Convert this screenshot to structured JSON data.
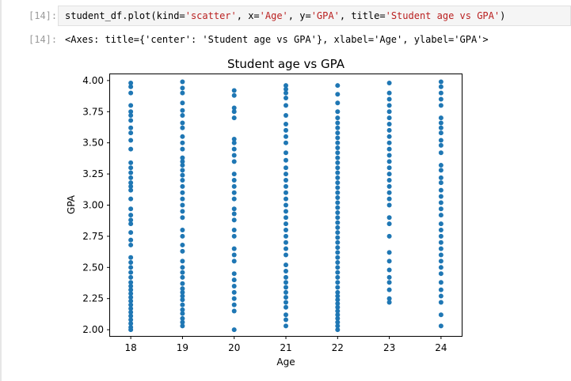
{
  "cell": {
    "input_prompt": "[14]:",
    "output_prompt": "[14]:",
    "code": {
      "prefix": "student_df.plot(kind=",
      "kind_val": "'scatter'",
      "mid1": ", x=",
      "x_val": "'Age'",
      "mid2": ", y=",
      "y_val": "'GPA'",
      "mid3": ", title=",
      "title_val": "'Student age vs GPA'",
      "suffix": ")"
    },
    "output_repr": "<Axes: title={'center': 'Student age vs GPA'}, xlabel='Age', ylabel='GPA'>"
  },
  "chart_data": {
    "type": "scatter",
    "title": "Student age vs GPA",
    "xlabel": "Age",
    "ylabel": "GPA",
    "xlim": [
      17.6,
      24.4
    ],
    "ylim": [
      1.95,
      4.05
    ],
    "x_ticks": [
      "18",
      "19",
      "20",
      "21",
      "22",
      "23",
      "24"
    ],
    "y_ticks": [
      "2.00",
      "2.25",
      "2.50",
      "2.75",
      "3.00",
      "3.25",
      "3.50",
      "3.75",
      "4.00"
    ],
    "grid": false,
    "color": "#1f77b4",
    "series": [
      {
        "x": 18,
        "y": [
          2.0,
          2.02,
          2.05,
          2.08,
          2.11,
          2.14,
          2.17,
          2.2,
          2.23,
          2.26,
          2.29,
          2.32,
          2.35,
          2.38,
          2.42,
          2.46,
          2.5,
          2.54,
          2.58,
          2.68,
          2.72,
          2.78,
          2.85,
          2.88,
          2.92,
          2.97,
          3.05,
          3.12,
          3.15,
          3.18,
          3.22,
          3.26,
          3.3,
          3.34,
          3.45,
          3.52,
          3.58,
          3.62,
          3.68,
          3.72,
          3.75,
          3.8,
          3.9,
          3.95,
          3.98
        ]
      },
      {
        "x": 19,
        "y": [
          2.03,
          2.06,
          2.09,
          2.13,
          2.16,
          2.2,
          2.24,
          2.27,
          2.3,
          2.33,
          2.37,
          2.42,
          2.46,
          2.5,
          2.55,
          2.63,
          2.68,
          2.75,
          2.8,
          2.9,
          2.95,
          3.0,
          3.05,
          3.1,
          3.15,
          3.2,
          3.24,
          3.28,
          3.32,
          3.35,
          3.38,
          3.45,
          3.5,
          3.55,
          3.62,
          3.66,
          3.72,
          3.76,
          3.82,
          3.9,
          3.94,
          3.99
        ]
      },
      {
        "x": 20,
        "y": [
          2.0,
          2.15,
          2.2,
          2.25,
          2.3,
          2.35,
          2.4,
          2.45,
          2.55,
          2.6,
          2.65,
          2.75,
          2.8,
          2.88,
          2.93,
          2.97,
          3.05,
          3.1,
          3.15,
          3.2,
          3.25,
          3.35,
          3.4,
          3.45,
          3.5,
          3.53,
          3.7,
          3.75,
          3.78,
          3.88,
          3.92
        ]
      },
      {
        "x": 21,
        "y": [
          2.03,
          2.08,
          2.12,
          2.18,
          2.22,
          2.26,
          2.3,
          2.34,
          2.38,
          2.42,
          2.47,
          2.52,
          2.6,
          2.65,
          2.7,
          2.75,
          2.8,
          2.85,
          2.9,
          2.95,
          3.0,
          3.05,
          3.1,
          3.15,
          3.2,
          3.25,
          3.3,
          3.36,
          3.42,
          3.5,
          3.55,
          3.6,
          3.65,
          3.72,
          3.8,
          3.86,
          3.9,
          3.93,
          3.96
        ]
      },
      {
        "x": 22,
        "y": [
          2.0,
          2.03,
          2.06,
          2.09,
          2.12,
          2.15,
          2.18,
          2.21,
          2.24,
          2.27,
          2.3,
          2.34,
          2.38,
          2.42,
          2.46,
          2.5,
          2.54,
          2.58,
          2.62,
          2.66,
          2.7,
          2.74,
          2.78,
          2.82,
          2.86,
          2.9,
          2.94,
          2.98,
          3.02,
          3.06,
          3.1,
          3.14,
          3.18,
          3.22,
          3.26,
          3.3,
          3.34,
          3.38,
          3.42,
          3.46,
          3.5,
          3.54,
          3.58,
          3.62,
          3.66,
          3.7,
          3.75,
          3.82,
          3.89,
          3.96
        ]
      },
      {
        "x": 23,
        "y": [
          2.22,
          2.25,
          2.32,
          2.38,
          2.42,
          2.48,
          2.55,
          2.62,
          2.75,
          2.85,
          2.9,
          3.0,
          3.05,
          3.1,
          3.15,
          3.2,
          3.25,
          3.3,
          3.35,
          3.4,
          3.45,
          3.5,
          3.55,
          3.6,
          3.65,
          3.7,
          3.75,
          3.8,
          3.85,
          3.9,
          3.98
        ]
      },
      {
        "x": 24,
        "y": [
          2.03,
          2.12,
          2.22,
          2.27,
          2.32,
          2.38,
          2.45,
          2.5,
          2.55,
          2.6,
          2.65,
          2.7,
          2.75,
          2.8,
          2.85,
          2.92,
          2.97,
          3.02,
          3.07,
          3.12,
          3.18,
          3.22,
          3.28,
          3.32,
          3.42,
          3.48,
          3.52,
          3.58,
          3.62,
          3.66,
          3.7,
          3.8,
          3.85,
          3.9,
          3.95,
          3.99
        ]
      }
    ]
  }
}
